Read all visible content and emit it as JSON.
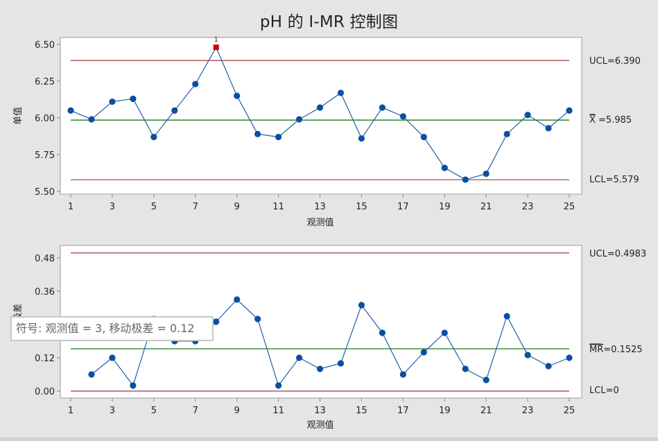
{
  "title": "pH 的 I-MR 控制图",
  "colors": {
    "background": "#e5e5e5",
    "plot_bg": "#ffffff",
    "frame": "#a9a9a9",
    "series": "#1f5fa8",
    "marker": "#0b4fa0",
    "out_of_control": "#d40000",
    "ucl_lcl_top": "#b04a4a",
    "ucl_lcl_bottom": "#c48888",
    "center": "#1a7a1a"
  },
  "tooltip": {
    "text": "符号:  观测值 = 3, 移动极差 = 0.12"
  },
  "chart_data": [
    {
      "type": "line",
      "name": "individual-chart",
      "ylabel": "单值",
      "xlabel": "观测值",
      "x": [
        1,
        2,
        3,
        4,
        5,
        6,
        7,
        8,
        9,
        10,
        11,
        12,
        13,
        14,
        15,
        16,
        17,
        18,
        19,
        20,
        21,
        22,
        23,
        24,
        25
      ],
      "values": [
        6.05,
        5.99,
        6.11,
        6.13,
        5.87,
        6.05,
        6.23,
        6.48,
        6.15,
        5.89,
        5.87,
        5.99,
        6.07,
        6.17,
        5.86,
        6.07,
        6.01,
        5.87,
        5.66,
        5.58,
        5.62,
        5.89,
        6.02,
        5.93,
        6.05
      ],
      "xticks": [
        1,
        3,
        5,
        7,
        9,
        11,
        13,
        15,
        17,
        19,
        21,
        23,
        25
      ],
      "yticks": [
        5.5,
        5.75,
        6.0,
        6.25,
        6.5
      ],
      "ytick_labels": [
        "5.50",
        "5.75",
        "6.00",
        "6.25",
        "6.50"
      ],
      "ylim": [
        5.5,
        6.5
      ],
      "ucl": 6.39,
      "center": 5.985,
      "lcl": 5.579,
      "ucl_label": "UCL=6.390",
      "center_label_symbol": "X",
      "center_label": " =5.985",
      "lcl_label": "LCL=5.579",
      "out_of_control_points": [
        {
          "x": 8,
          "value": 6.48,
          "test_label": "1"
        }
      ],
      "grid": false
    },
    {
      "type": "line",
      "name": "moving-range-chart",
      "ylabel": "移动极差",
      "xlabel": "观测值",
      "x": [
        2,
        3,
        4,
        5,
        6,
        7,
        8,
        9,
        10,
        11,
        12,
        13,
        14,
        15,
        16,
        17,
        18,
        19,
        20,
        21,
        22,
        23,
        24,
        25
      ],
      "values": [
        0.06,
        0.12,
        0.02,
        0.26,
        0.18,
        0.18,
        0.25,
        0.33,
        0.26,
        0.02,
        0.12,
        0.08,
        0.1,
        0.31,
        0.21,
        0.06,
        0.14,
        0.21,
        0.08,
        0.04,
        0.27,
        0.13,
        0.09,
        0.12
      ],
      "xticks": [
        1,
        3,
        5,
        7,
        9,
        11,
        13,
        15,
        17,
        19,
        21,
        23,
        25
      ],
      "yticks": [
        0.0,
        0.12,
        0.24,
        0.36,
        0.48
      ],
      "ytick_labels": [
        "0.00",
        "0.12",
        "0.24",
        "0.36",
        "0.48"
      ],
      "ylim": [
        0.0,
        0.48
      ],
      "ucl": 0.4983,
      "center": 0.1525,
      "lcl": 0,
      "ucl_label": "UCL=0.4983",
      "center_label_symbol": "MR",
      "center_label": "=0.1525",
      "lcl_label": "LCL=0",
      "out_of_control_points": [],
      "grid": false
    }
  ]
}
